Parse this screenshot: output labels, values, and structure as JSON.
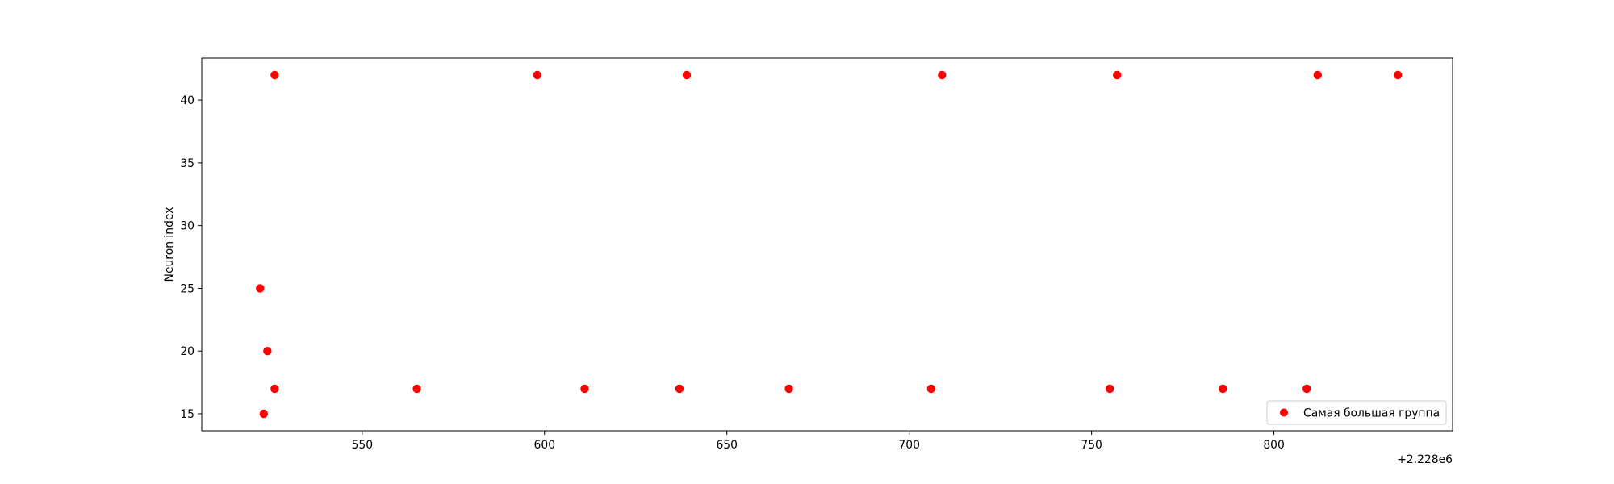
{
  "chart_data": {
    "type": "scatter",
    "title": "",
    "xlabel": "",
    "ylabel": "Neuron index",
    "x_offset_label": "+2.228e6",
    "xlim": [
      506,
      849
    ],
    "ylim": [
      13.65,
      43.35
    ],
    "xticks": [
      550,
      600,
      650,
      700,
      750,
      800
    ],
    "yticks": [
      15,
      20,
      25,
      30,
      35,
      40
    ],
    "grid": false,
    "legend_position": "lower right",
    "color": "#ff0000",
    "series": [
      {
        "name": "Самая большая группа",
        "points": [
          {
            "x": 526,
            "y": 42
          },
          {
            "x": 598,
            "y": 42
          },
          {
            "x": 639,
            "y": 42
          },
          {
            "x": 709,
            "y": 42
          },
          {
            "x": 757,
            "y": 42
          },
          {
            "x": 812,
            "y": 42
          },
          {
            "x": 834,
            "y": 42
          },
          {
            "x": 522,
            "y": 25
          },
          {
            "x": 524,
            "y": 20
          },
          {
            "x": 526,
            "y": 17
          },
          {
            "x": 565,
            "y": 17
          },
          {
            "x": 611,
            "y": 17
          },
          {
            "x": 637,
            "y": 17
          },
          {
            "x": 667,
            "y": 17
          },
          {
            "x": 706,
            "y": 17
          },
          {
            "x": 755,
            "y": 17
          },
          {
            "x": 786,
            "y": 17
          },
          {
            "x": 809,
            "y": 17
          },
          {
            "x": 523,
            "y": 15
          }
        ]
      }
    ]
  }
}
